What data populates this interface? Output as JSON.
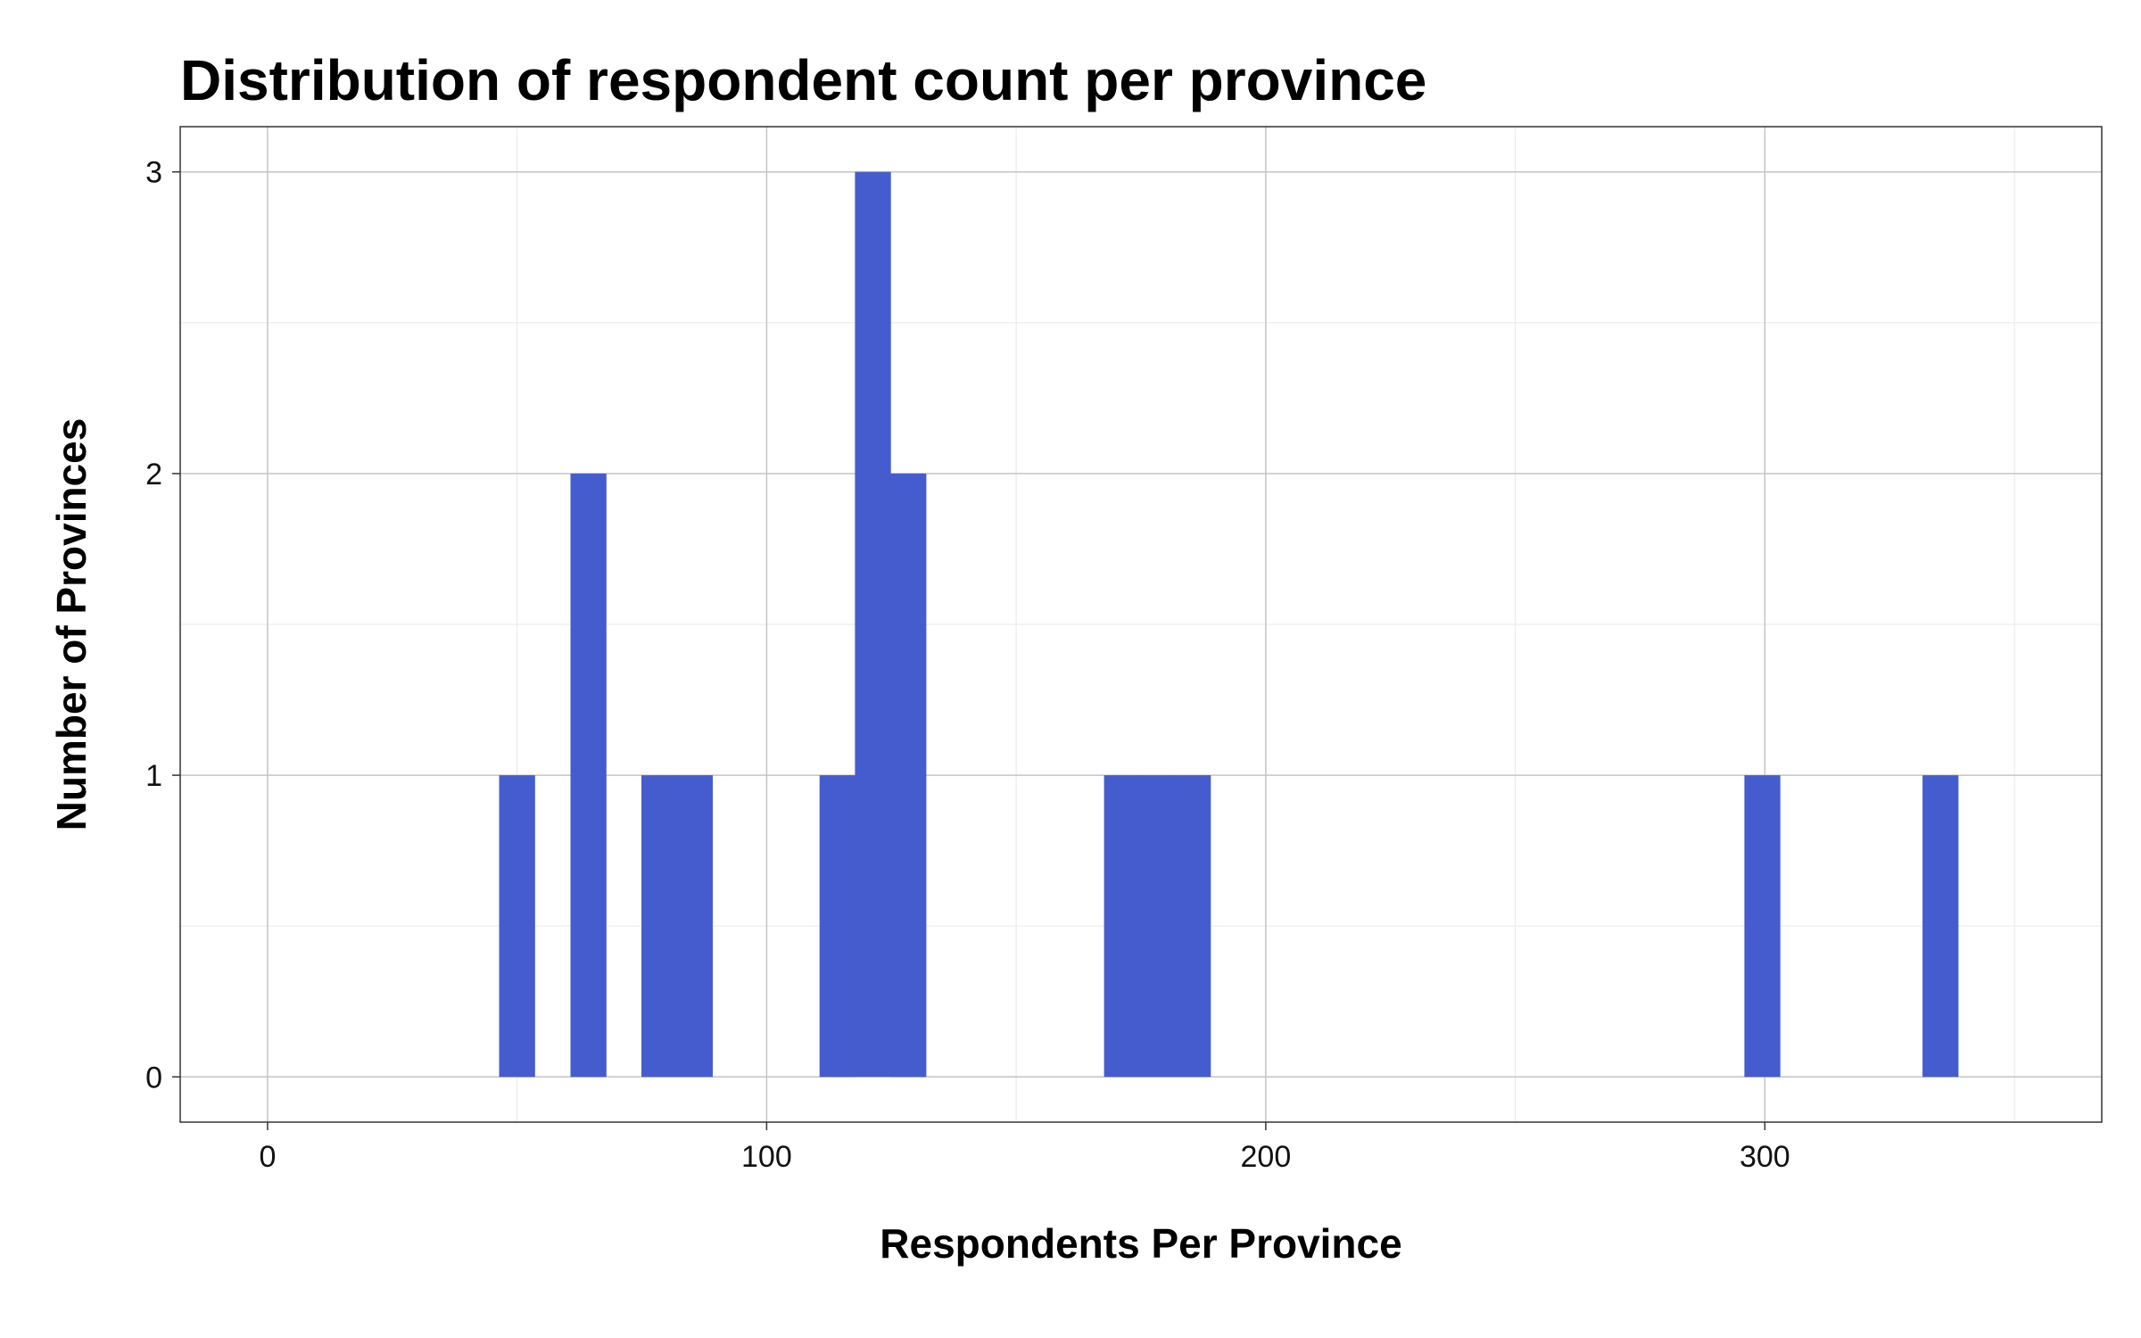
{
  "chart_data": {
    "type": "bar",
    "title": "Distribution of respondent count per province",
    "xlabel": "Respondents Per Province",
    "ylabel": "Number of Provinces",
    "xlim": [
      -17.5,
      367.5
    ],
    "ylim": [
      -0.15,
      3.15
    ],
    "x_ticks": [
      0,
      100,
      200,
      300
    ],
    "x_minor_ticks": [
      50,
      150,
      250,
      350
    ],
    "y_ticks": [
      0,
      1,
      2,
      3
    ],
    "y_minor_ticks": [
      0.5,
      1.5,
      2.5
    ],
    "grid": true,
    "bins": [
      {
        "x0": 46.4,
        "x1": 53.5,
        "count": 1
      },
      {
        "x0": 60.7,
        "x1": 67.8,
        "count": 2
      },
      {
        "x0": 74.9,
        "x1": 82.0,
        "count": 1
      },
      {
        "x0": 82.0,
        "x1": 89.1,
        "count": 1
      },
      {
        "x0": 110.6,
        "x1": 117.7,
        "count": 1
      },
      {
        "x0": 117.7,
        "x1": 124.8,
        "count": 3
      },
      {
        "x0": 124.8,
        "x1": 131.9,
        "count": 2
      },
      {
        "x0": 167.6,
        "x1": 174.7,
        "count": 1
      },
      {
        "x0": 174.7,
        "x1": 181.8,
        "count": 1
      },
      {
        "x0": 181.8,
        "x1": 188.9,
        "count": 1
      },
      {
        "x0": 295.9,
        "x1": 303.0,
        "count": 1
      },
      {
        "x0": 331.6,
        "x1": 338.7,
        "count": 1
      }
    ],
    "bar_color": "#455cce"
  }
}
